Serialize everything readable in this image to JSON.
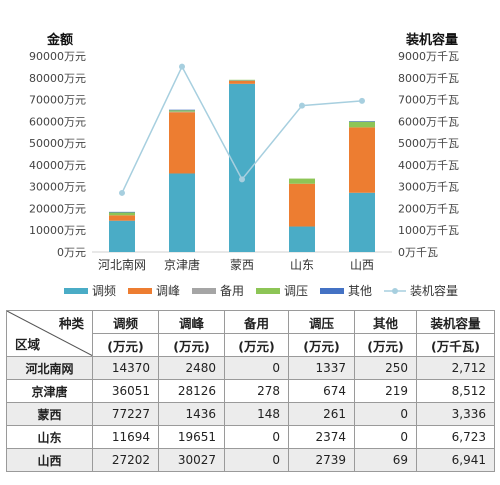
{
  "chart_data": {
    "type": "bar",
    "stacked": true,
    "left_axis_title": "金额",
    "right_axis_title": "装机容量",
    "left_ticks": [
      "0万元",
      "10000万元",
      "20000万元",
      "30000万元",
      "40000万元",
      "50000万元",
      "60000万元",
      "70000万元",
      "80000万元",
      "90000万元"
    ],
    "right_ticks": [
      "0万千瓦",
      "1000万千瓦",
      "2000万千瓦",
      "3000万千瓦",
      "4000万千瓦",
      "5000万千瓦",
      "6000万千瓦",
      "7000万千瓦",
      "8000万千瓦",
      "9000万千瓦"
    ],
    "left_ylim": [
      0,
      90000
    ],
    "right_ylim": [
      0,
      9000
    ],
    "grid": false,
    "legend_position": "bottom",
    "categories": [
      "河北南网",
      "京津唐",
      "蒙西",
      "山东",
      "山西"
    ],
    "series": [
      {
        "name": "调频",
        "color": "#4aacc6",
        "values": [
          14370,
          36051,
          77227,
          11694,
          27202
        ]
      },
      {
        "name": "调峰",
        "color": "#ed7d31",
        "values": [
          2480,
          28126,
          1436,
          19651,
          30027
        ]
      },
      {
        "name": "备用",
        "color": "#a5a5a5",
        "values": [
          0,
          278,
          148,
          0,
          0
        ]
      },
      {
        "name": "调压",
        "color": "#8dc556",
        "values": [
          1337,
          674,
          261,
          2374,
          2739
        ]
      },
      {
        "name": "其他",
        "color": "#4472c4",
        "values": [
          250,
          219,
          0,
          0,
          69
        ]
      },
      {
        "name": "装机容量",
        "color": "#a7cfdf",
        "type": "line",
        "axis": "right",
        "values": [
          2712,
          8512,
          3336,
          6723,
          6941
        ]
      }
    ]
  },
  "table": {
    "corner_top": "种类",
    "corner_bottom": "区域",
    "headers": [
      {
        "label": "调频",
        "unit": "(万元)"
      },
      {
        "label": "调峰",
        "unit": "(万元)"
      },
      {
        "label": "备用",
        "unit": "(万元)"
      },
      {
        "label": "调压",
        "unit": "(万元)"
      },
      {
        "label": "其他",
        "unit": "(万元)"
      },
      {
        "label": "装机容量",
        "unit": "(万千瓦)"
      }
    ],
    "rows": [
      {
        "region": "河北南网",
        "cells": [
          "14370",
          "2480",
          "0",
          "1337",
          "250",
          "2,712"
        ]
      },
      {
        "region": "京津唐",
        "cells": [
          "36051",
          "28126",
          "278",
          "674",
          "219",
          "8,512"
        ]
      },
      {
        "region": "蒙西",
        "cells": [
          "77227",
          "1436",
          "148",
          "261",
          "0",
          "3,336"
        ]
      },
      {
        "region": "山东",
        "cells": [
          "11694",
          "19651",
          "0",
          "2374",
          "0",
          "6,723"
        ]
      },
      {
        "region": "山西",
        "cells": [
          "27202",
          "30027",
          "0",
          "2739",
          "69",
          "6,941"
        ]
      }
    ]
  }
}
